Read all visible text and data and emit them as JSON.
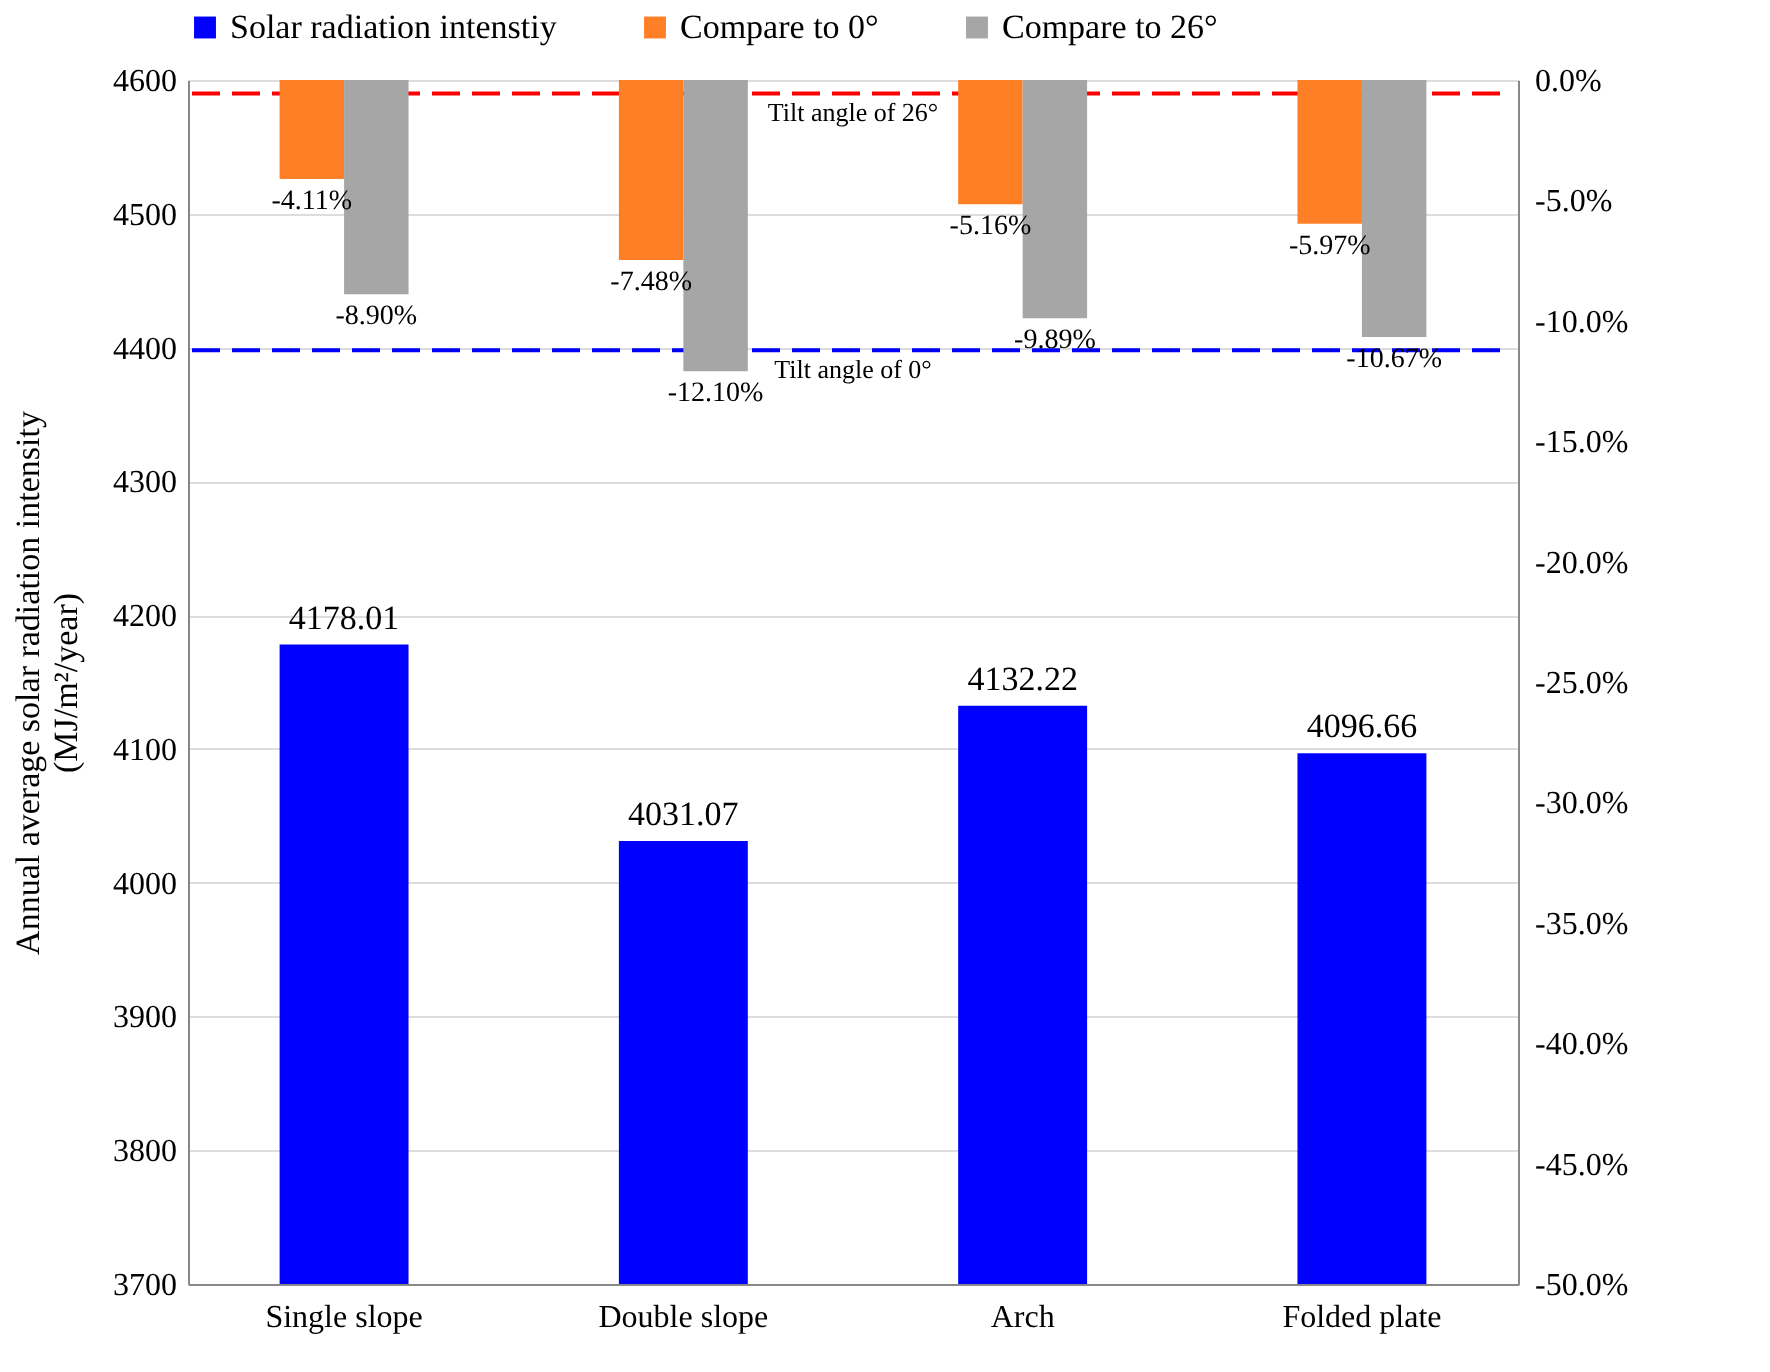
{
  "chart_data": {
    "type": "bar",
    "ylabel": "Annual  average solar radiation intensity (MJ/m²/year)",
    "categories": [
      "Single slope",
      "Double slope",
      "Arch",
      "Folded plate"
    ],
    "series": [
      {
        "name": "Solar radiation intenstiy",
        "color": "#0000ff",
        "values": [
          4178.01,
          4031.07,
          4132.22,
          4096.66
        ],
        "value_labels": [
          "4178.01",
          "4031.07",
          "4132.22",
          "4096.66"
        ]
      },
      {
        "name": "Compare to 0°",
        "color": "#ff7f27",
        "axis": "y2",
        "values": [
          -4.11,
          -7.48,
          -5.16,
          -5.97
        ],
        "value_labels": [
          "-4.11%",
          "-7.48%",
          "-5.16%",
          "-5.97%"
        ]
      },
      {
        "name": "Compare to 26°",
        "color": "#a6a6a6",
        "axis": "y2",
        "values": [
          -8.9,
          -12.1,
          -9.89,
          -10.67
        ],
        "value_labels": [
          "-8.90%",
          "-12.10%",
          "-9.89%",
          "-10.67%"
        ]
      }
    ],
    "ylim": [
      3700,
      4600
    ],
    "yticks": [
      3700,
      3800,
      3900,
      4000,
      4100,
      4200,
      4300,
      4400,
      4500,
      4600
    ],
    "y2lim": [
      -50,
      0
    ],
    "y2ticks": [
      {
        "value": -50,
        "label": "-50.0%"
      },
      {
        "value": -45,
        "label": "-45.0%"
      },
      {
        "value": -40,
        "label": "-40.0%"
      },
      {
        "value": -35,
        "label": "-35.0%"
      },
      {
        "value": -30,
        "label": "-30.0%"
      },
      {
        "value": -25,
        "label": "-25.0%"
      },
      {
        "value": -20,
        "label": "-20.0%"
      },
      {
        "value": -15,
        "label": "-15.0%"
      },
      {
        "value": -10,
        "label": "-10.0%"
      },
      {
        "value": -5,
        "label": "-5.0%"
      },
      {
        "value": 0,
        "label": "0.0%"
      }
    ],
    "ref_lines": [
      {
        "axis": "y",
        "value": 4590,
        "label": "Tilt angle of 26°",
        "color": "#ff0000",
        "line_style": "dashed"
      },
      {
        "axis": "y",
        "value": 4398,
        "label": "Tilt angle of 0°",
        "color": "#0000ff",
        "line_style": "dashed"
      }
    ],
    "grid": "y",
    "legend": "top"
  }
}
